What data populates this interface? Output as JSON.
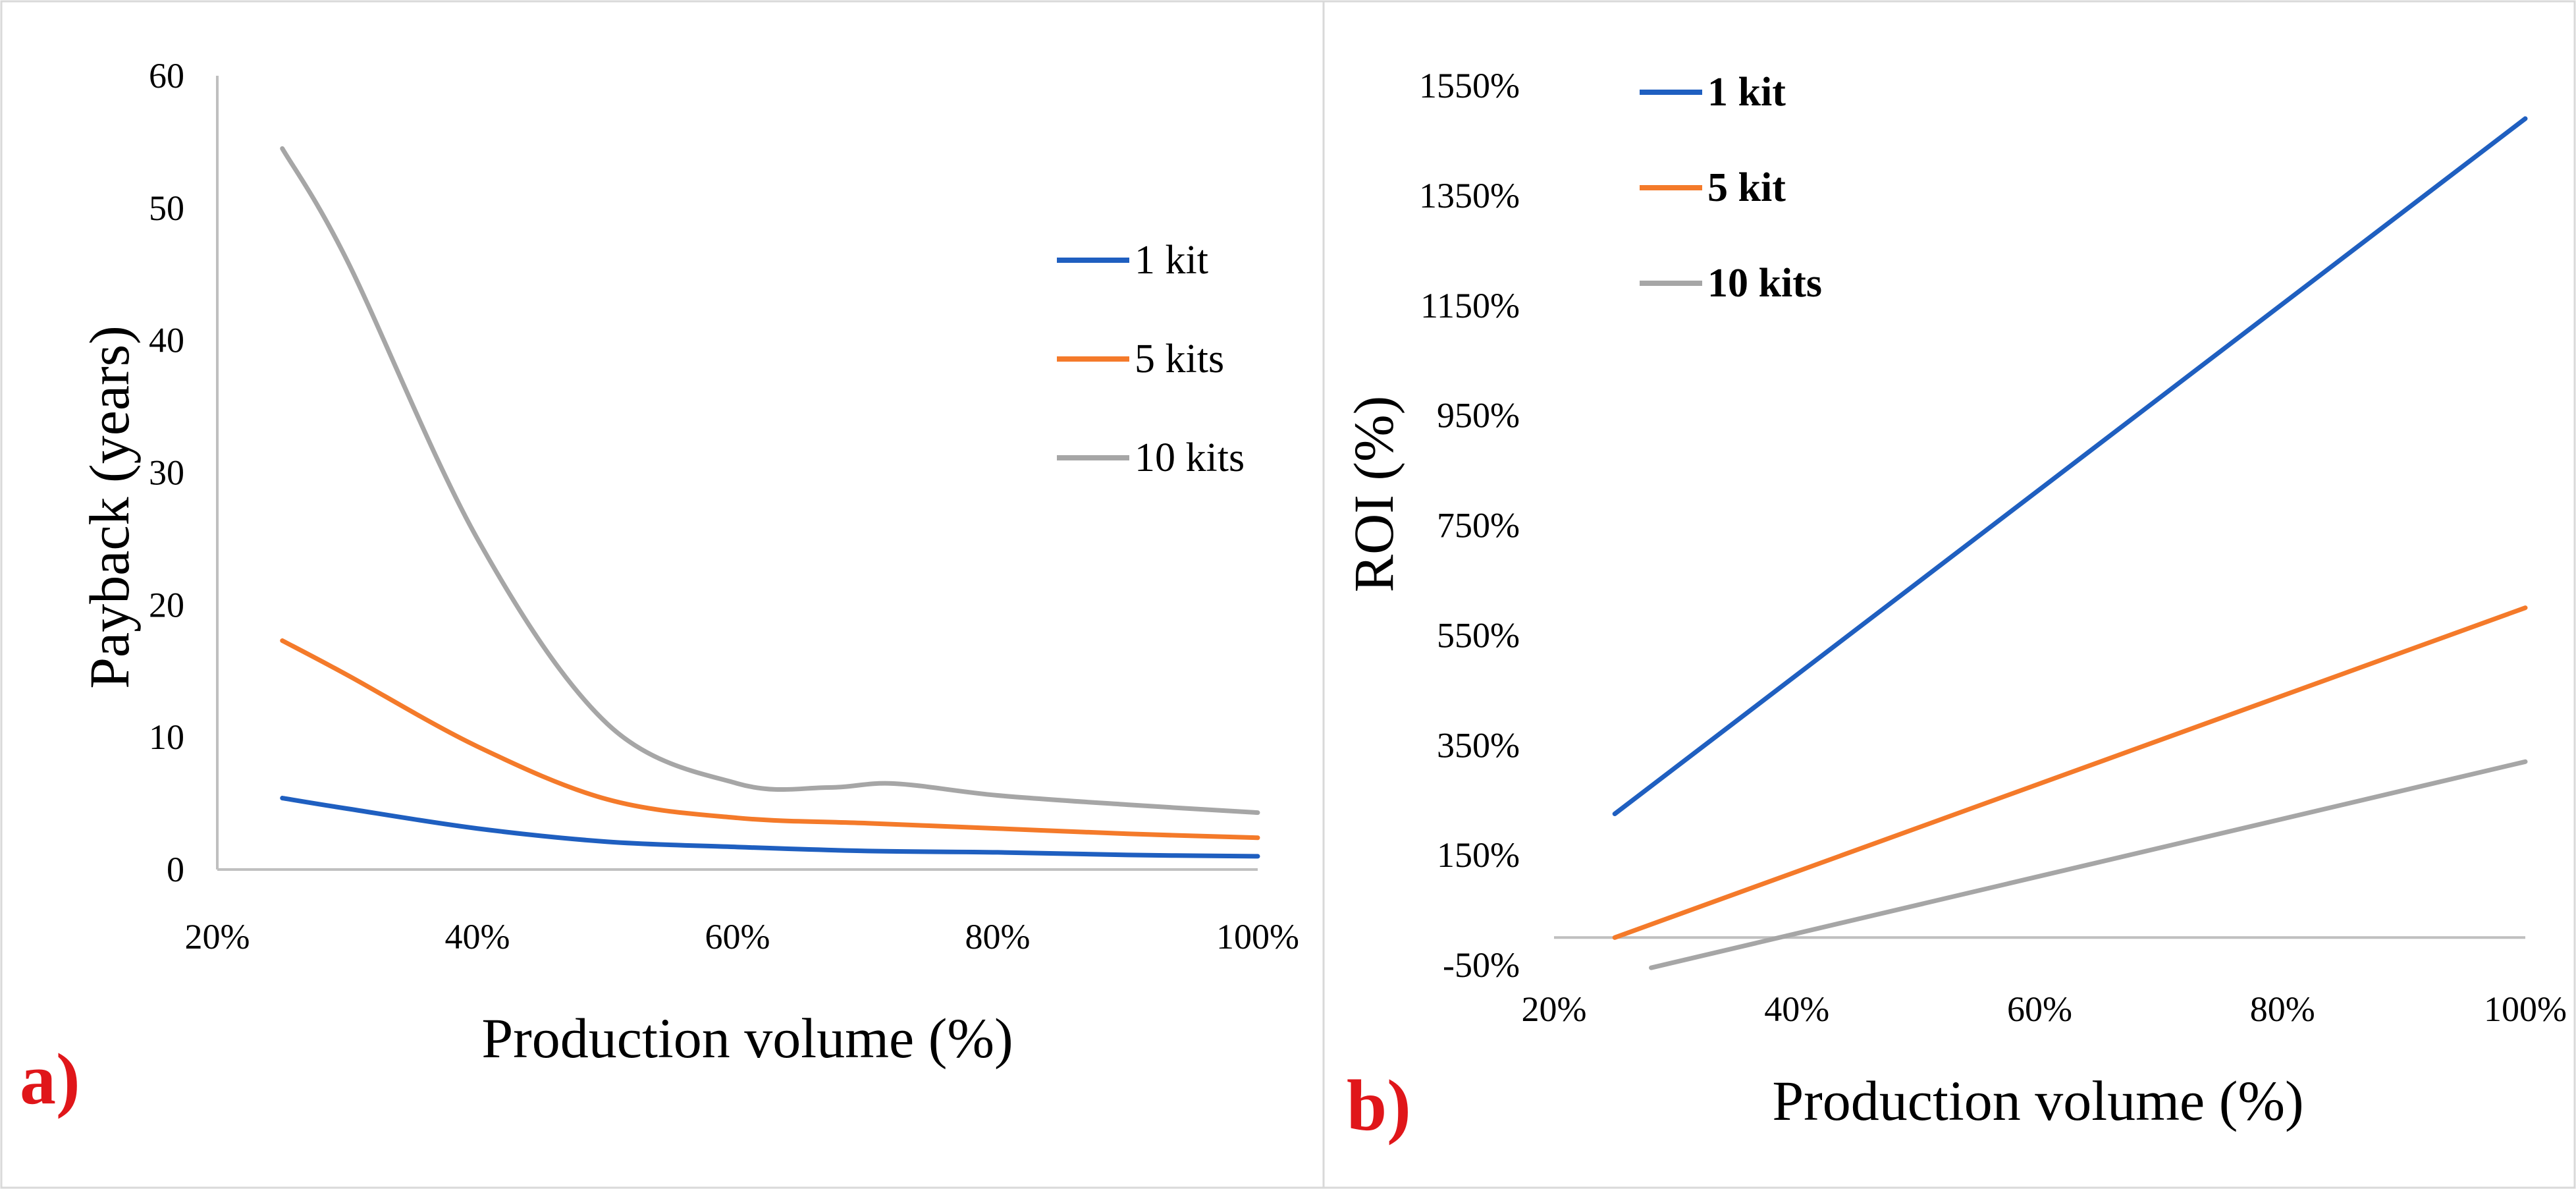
{
  "colors": {
    "blue": "#1f5fc0",
    "orange": "#f47a2a",
    "gray": "#a6a6a6",
    "label_red": "#e0161a",
    "axis": "#bfbfbf"
  },
  "chart_data": [
    {
      "id": "a",
      "type": "line",
      "panel_label": "a)",
      "xlabel": "Production volume (%)",
      "ylabel": "Payback  (years)",
      "xlim": [
        20,
        100
      ],
      "ylim": [
        0,
        60
      ],
      "x_ticks": [
        20,
        40,
        60,
        80,
        100
      ],
      "x_tick_labels": [
        "20%",
        "40%",
        "60%",
        "80%",
        "100%"
      ],
      "y_ticks": [
        0,
        10,
        20,
        30,
        40,
        50,
        60
      ],
      "y_tick_labels": [
        "0",
        "10",
        "20",
        "30",
        "40",
        "50",
        "60"
      ],
      "legend": [
        "1 kit",
        "5 kits",
        "10 kits"
      ],
      "series": [
        {
          "name": "1 kit",
          "color": "blue",
          "x": [
            25,
            30,
            40,
            50,
            60,
            70,
            80,
            90,
            100
          ],
          "y": [
            5.4,
            4.6,
            3.1,
            2.1,
            1.7,
            1.4,
            1.3,
            1.1,
            1.0
          ]
        },
        {
          "name": "5 kits",
          "color": "orange",
          "x": [
            25,
            30,
            40,
            50,
            60,
            70,
            80,
            90,
            100
          ],
          "y": [
            17.3,
            14.7,
            9.3,
            5.3,
            3.9,
            3.5,
            3.1,
            2.7,
            2.4
          ]
        },
        {
          "name": "10 kits",
          "color": "gray",
          "x": [
            25,
            30,
            40,
            50,
            60,
            67,
            72,
            80,
            90,
            100
          ],
          "y": [
            54.5,
            46.0,
            25.0,
            11.0,
            6.5,
            6.2,
            6.5,
            5.6,
            4.9,
            4.3
          ]
        }
      ]
    },
    {
      "id": "b",
      "type": "line",
      "panel_label": "b)",
      "xlabel": "Production volume (%)",
      "ylabel": "ROI (%)",
      "xlim": [
        20,
        100
      ],
      "ylim": [
        -50,
        1550
      ],
      "x_ticks": [
        20,
        40,
        60,
        80,
        100
      ],
      "x_tick_labels": [
        "20%",
        "40%",
        "60%",
        "80%",
        "100%"
      ],
      "y_ticks": [
        -50,
        150,
        350,
        550,
        750,
        950,
        1150,
        1350,
        1550
      ],
      "y_tick_labels": [
        "-50%",
        "150%",
        "350%",
        "550%",
        "750%",
        "950%",
        "1150%",
        "1350%",
        "1550%"
      ],
      "legend": [
        "1 kit",
        "5 kit",
        "10 kits"
      ],
      "series": [
        {
          "name": "1 kit",
          "color": "blue",
          "x": [
            25,
            100
          ],
          "y": [
            225,
            1490
          ]
        },
        {
          "name": "5 kit",
          "color": "orange",
          "x": [
            25,
            100
          ],
          "y": [
            0,
            600
          ]
        },
        {
          "name": "10 kits",
          "color": "gray",
          "x": [
            28,
            100
          ],
          "y": [
            -55,
            320
          ]
        }
      ]
    }
  ]
}
